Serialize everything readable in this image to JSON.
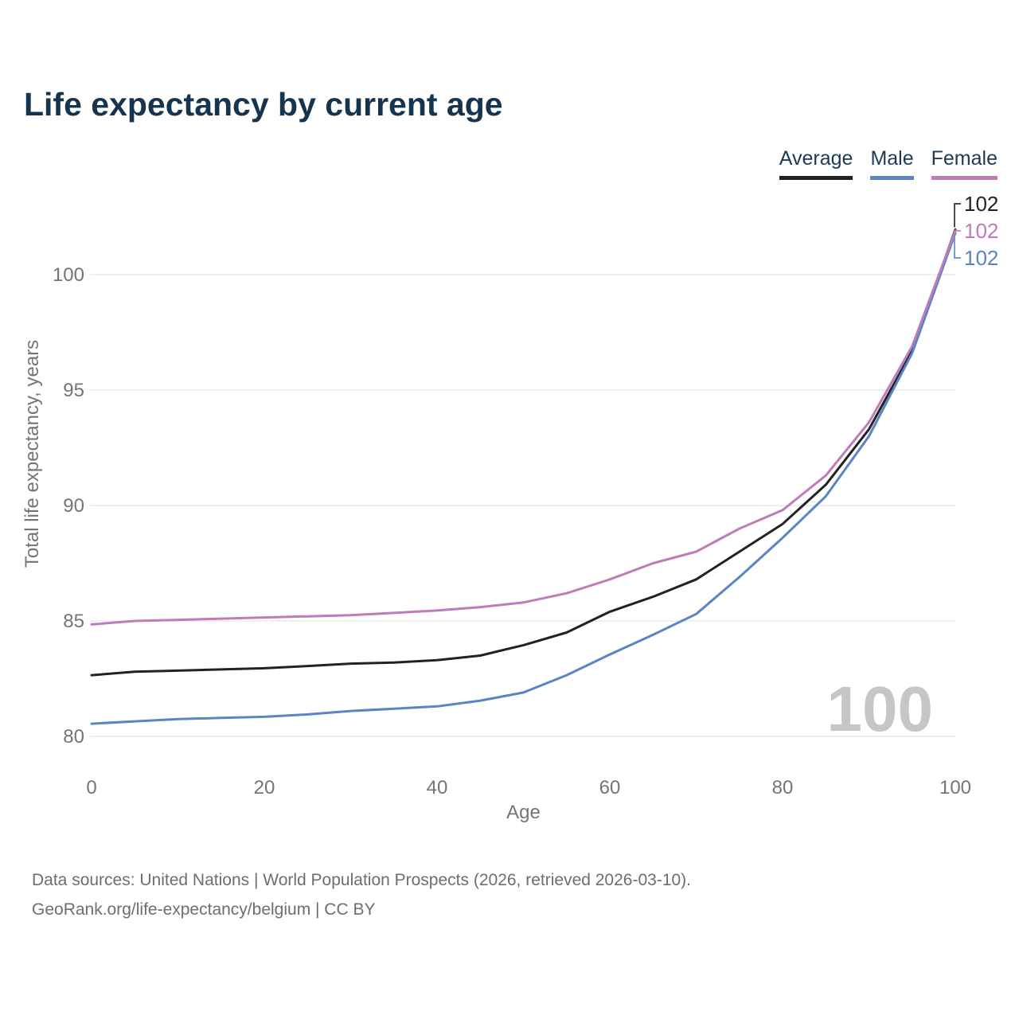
{
  "header": {
    "title": "Life expectancy by current age"
  },
  "chart_data": {
    "type": "line",
    "title": "Life expectancy by current age",
    "xlabel": "Age",
    "ylabel": "Total life expectancy, years",
    "xlim": [
      0,
      100
    ],
    "ylim": [
      80,
      103
    ],
    "x_ticks": [
      0,
      20,
      40,
      60,
      80,
      100
    ],
    "y_ticks": [
      80,
      85,
      90,
      95,
      100
    ],
    "grid": "horizontal",
    "legend_position": "top-right",
    "watermark": "100",
    "ages": [
      0,
      5,
      10,
      15,
      20,
      25,
      30,
      35,
      40,
      45,
      50,
      55,
      60,
      65,
      70,
      75,
      80,
      85,
      90,
      95,
      100
    ],
    "series": [
      {
        "name": "Average",
        "color": "#222222",
        "end_label": "102",
        "values": [
          82.65,
          82.8,
          82.85,
          82.9,
          82.95,
          83.05,
          83.15,
          83.2,
          83.3,
          83.5,
          83.95,
          84.5,
          85.4,
          86.05,
          86.8,
          88.0,
          89.2,
          90.9,
          93.3,
          96.7,
          101.95
        ]
      },
      {
        "name": "Male",
        "color": "#5b84c4",
        "end_label": "102",
        "values": [
          80.55,
          80.65,
          80.75,
          80.8,
          80.85,
          80.95,
          81.1,
          81.2,
          81.3,
          81.55,
          81.9,
          82.65,
          83.55,
          84.4,
          85.3,
          86.9,
          88.6,
          90.4,
          93.0,
          96.6,
          101.8
        ]
      },
      {
        "name": "Female",
        "color": "#bf7cb9",
        "end_label": "102",
        "values": [
          84.85,
          85.0,
          85.05,
          85.1,
          85.15,
          85.2,
          85.25,
          85.35,
          85.45,
          85.6,
          85.8,
          86.2,
          86.8,
          87.5,
          88.0,
          89.0,
          89.8,
          91.3,
          93.6,
          96.9,
          101.9
        ]
      }
    ]
  },
  "footer": {
    "line1": "Data sources: United Nations | World Population Prospects (2026, retrieved 2026-03-10).",
    "line2": "GeoRank.org/life-expectancy/belgium | CC BY"
  }
}
